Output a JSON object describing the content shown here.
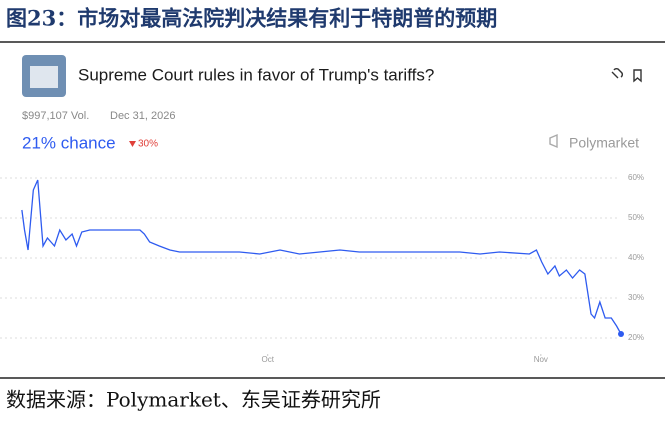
{
  "figure": {
    "caption": "图23：市场对最高法院判决结果有利于特朗普的预期",
    "source": "数据来源：Polymarket、东吴证券研究所"
  },
  "chart_data": {
    "type": "line",
    "title": "Supreme Court rules in favor of Trump's tariffs?",
    "annotations": [
      "$997,107 Vol.",
      "Dec 31, 2026",
      "21% chance",
      "30%",
      "Polymarket"
    ],
    "color": "#2e5bf0",
    "x": [
      -27.9,
      -27.6,
      -27.2,
      -26.6,
      -26.1,
      -25.5,
      -25.0,
      -24.2,
      -23.6,
      -22.9,
      -22.2,
      -21.7,
      -21.1,
      -20.2,
      -14.5,
      -14.0,
      -13.4,
      -12.3,
      -11.1,
      -10.0,
      -3.2,
      -0.9,
      1.4,
      3.6,
      5.9,
      8.2,
      10.4,
      19.5,
      21.8,
      24.1,
      26.3,
      29.7,
      30.5,
      31.1,
      31.8,
      32.6,
      33.1,
      33.9,
      34.6,
      35.4,
      36.0,
      36.7,
      37.1,
      37.7,
      38.3,
      39.0,
      39.6,
      40.1
    ],
    "values": [
      52,
      47,
      42,
      57,
      59.5,
      43,
      45,
      43,
      47,
      44.5,
      46,
      43,
      46.5,
      47,
      47,
      46,
      44,
      43,
      42,
      41.5,
      41.5,
      41,
      42,
      41,
      41.5,
      42,
      41.5,
      41.5,
      41.5,
      41,
      41.5,
      41,
      42,
      39,
      36,
      38,
      35.5,
      37,
      35,
      37,
      36,
      26,
      25,
      29,
      25,
      25,
      23,
      21
    ],
    "xlim": [
      -28,
      40.1
    ],
    "xticks": [
      {
        "value": 0,
        "label": "Oct"
      },
      {
        "value": 31,
        "label": "Nov"
      }
    ],
    "ylim": [
      16,
      62
    ],
    "yticks": [
      {
        "value": 60,
        "label": "60%"
      },
      {
        "value": 50,
        "label": "50%"
      },
      {
        "value": 40,
        "label": "40%"
      },
      {
        "value": 30,
        "label": "30%"
      },
      {
        "value": 20,
        "label": "20%"
      }
    ],
    "grid": true
  }
}
